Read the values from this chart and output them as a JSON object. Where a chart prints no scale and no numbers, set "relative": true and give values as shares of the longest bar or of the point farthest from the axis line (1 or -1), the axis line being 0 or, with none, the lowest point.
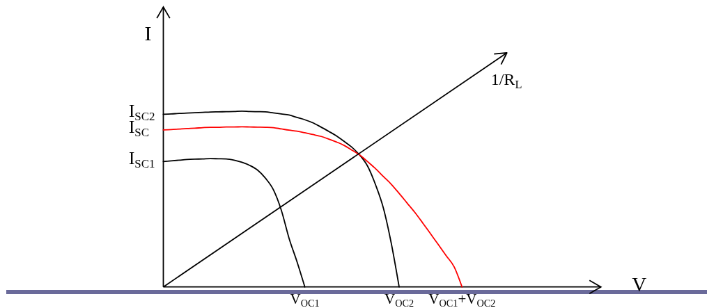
{
  "chart_data": {
    "type": "line",
    "ylabel": "I",
    "relative": true,
    "categories": [
      null,
      null,
      null,
      null,
      null,
      null,
      null,
      null,
      null,
      null,
      null,
      null,
      null,
      null,
      null,
      null,
      null,
      null,
      "V$_{OC1}$",
      null,
      null,
      null,
      null,
      null,
      null,
      null,
      null,
      null,
      null,
      null,
      "V$_{OC2}$",
      null,
      null,
      null,
      null,
      null,
      null,
      null,
      "V$_{OC1}$+V$_{OC2}$"
    ],
    "series": [
      {
        "name": "I$_{SC2}$",
        "color": "#000000",
        "values": [
          0.982,
          0.984,
          0.987,
          0.989,
          0.991,
          0.993,
          0.995,
          0.996,
          0.997,
          0.998,
          1,
          0.998,
          0.997,
          0.996,
          0.99,
          0.984,
          0.978,
          0.964,
          0.951,
          0.934,
          0.911,
          0.886,
          0.86,
          0.828,
          0.794,
          0.749,
          0.686,
          0.581,
          0.448,
          0.248,
          0,
          null,
          null,
          null,
          null,
          null,
          null,
          null,
          null
        ]
      },
      {
        "name": "I$_{SC}$",
        "color": "#ff0000",
        "values": [
          0.893,
          0.895,
          0.898,
          0.901,
          0.903,
          0.906,
          0.908,
          0.908,
          0.91,
          0.91,
          0.911,
          0.91,
          0.909,
          0.908,
          0.906,
          0.899,
          0.892,
          0.886,
          0.877,
          0.867,
          0.857,
          0.842,
          0.825,
          0.805,
          0.778,
          0.75,
          0.712,
          0.673,
          0.628,
          0.584,
          0.532,
          0.478,
          0.424,
          0.364,
          0.302,
          0.24,
          0.177,
          0.114,
          0
        ]
      },
      {
        "name": "I$_{SC1}$",
        "color": "#000000",
        "values": [
          0.713,
          0.717,
          0.721,
          0.725,
          0.727,
          0.728,
          0.73,
          0.729,
          0.728,
          0.721,
          0.709,
          0.691,
          0.664,
          0.618,
          0.553,
          0.438,
          0.276,
          0.144,
          0,
          null,
          null,
          null,
          null,
          null,
          null,
          null,
          null,
          null,
          null,
          null,
          null,
          null,
          null,
          null,
          null,
          null,
          null,
          null,
          null
        ]
      }
    ],
    "annotations": [
      "1/R$_{L}$",
      "V"
    ]
  }
}
